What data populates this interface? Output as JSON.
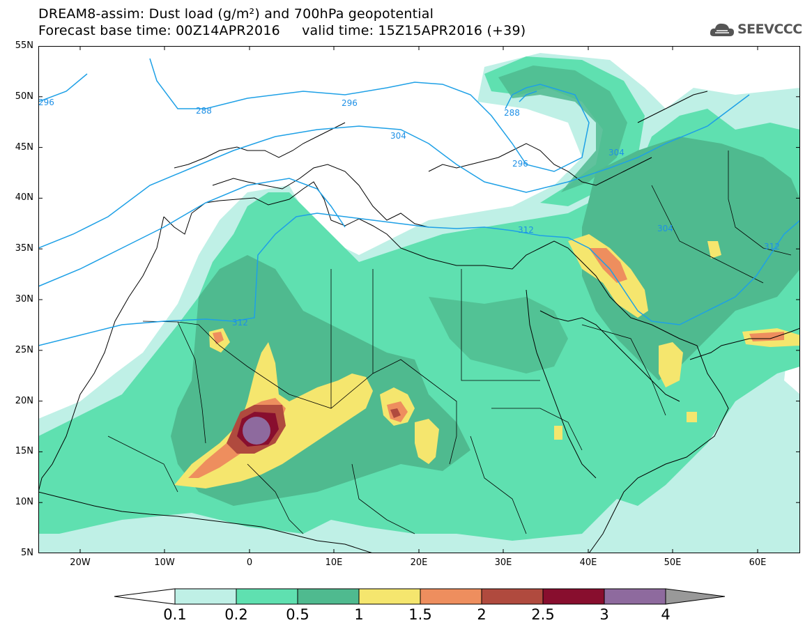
{
  "header": {
    "title_line1": "DREAM8-assim: Dust load (g/m²) and 700hPa geopotential",
    "title_line2": "Forecast base time: 00Z14APR2016     valid time: 15Z15APR2016 (+39)",
    "logo_text": "SEEVCCC"
  },
  "axes": {
    "lat_labels": [
      "55N",
      "50N",
      "45N",
      "40N",
      "35N",
      "30N",
      "25N",
      "20N",
      "15N",
      "10N",
      "5N"
    ],
    "lon_labels": [
      "20W",
      "10W",
      "0",
      "10E",
      "20E",
      "30E",
      "40E",
      "50E",
      "60E"
    ]
  },
  "contours": {
    "labels": [
      "296",
      "288",
      "296",
      "288",
      "304",
      "296",
      "304",
      "312",
      "304",
      "312",
      "312"
    ]
  },
  "colorbar": {
    "labels": [
      "0.1",
      "0.2",
      "0.5",
      "1",
      "1.5",
      "2",
      "2.5",
      "3",
      "4"
    ],
    "colors": [
      "#ffffff",
      "#bff0e6",
      "#5fe0b0",
      "#4fba8f",
      "#f5e66e",
      "#ee8e5e",
      "#b04a3e",
      "#880e2e",
      "#8e6a9e",
      "#999999"
    ]
  },
  "map": {
    "background": "#ffffff",
    "dust_colors": {
      "light": "#bff0e6",
      "mid": "#5fe0b0",
      "dark": "#4fba8f",
      "yellow": "#f5e66e",
      "orange": "#ee8e5e",
      "brown": "#b04a3e",
      "maroon": "#880e2e",
      "purple": "#8e6a9e"
    },
    "contour_color": "#1ea0e6"
  }
}
